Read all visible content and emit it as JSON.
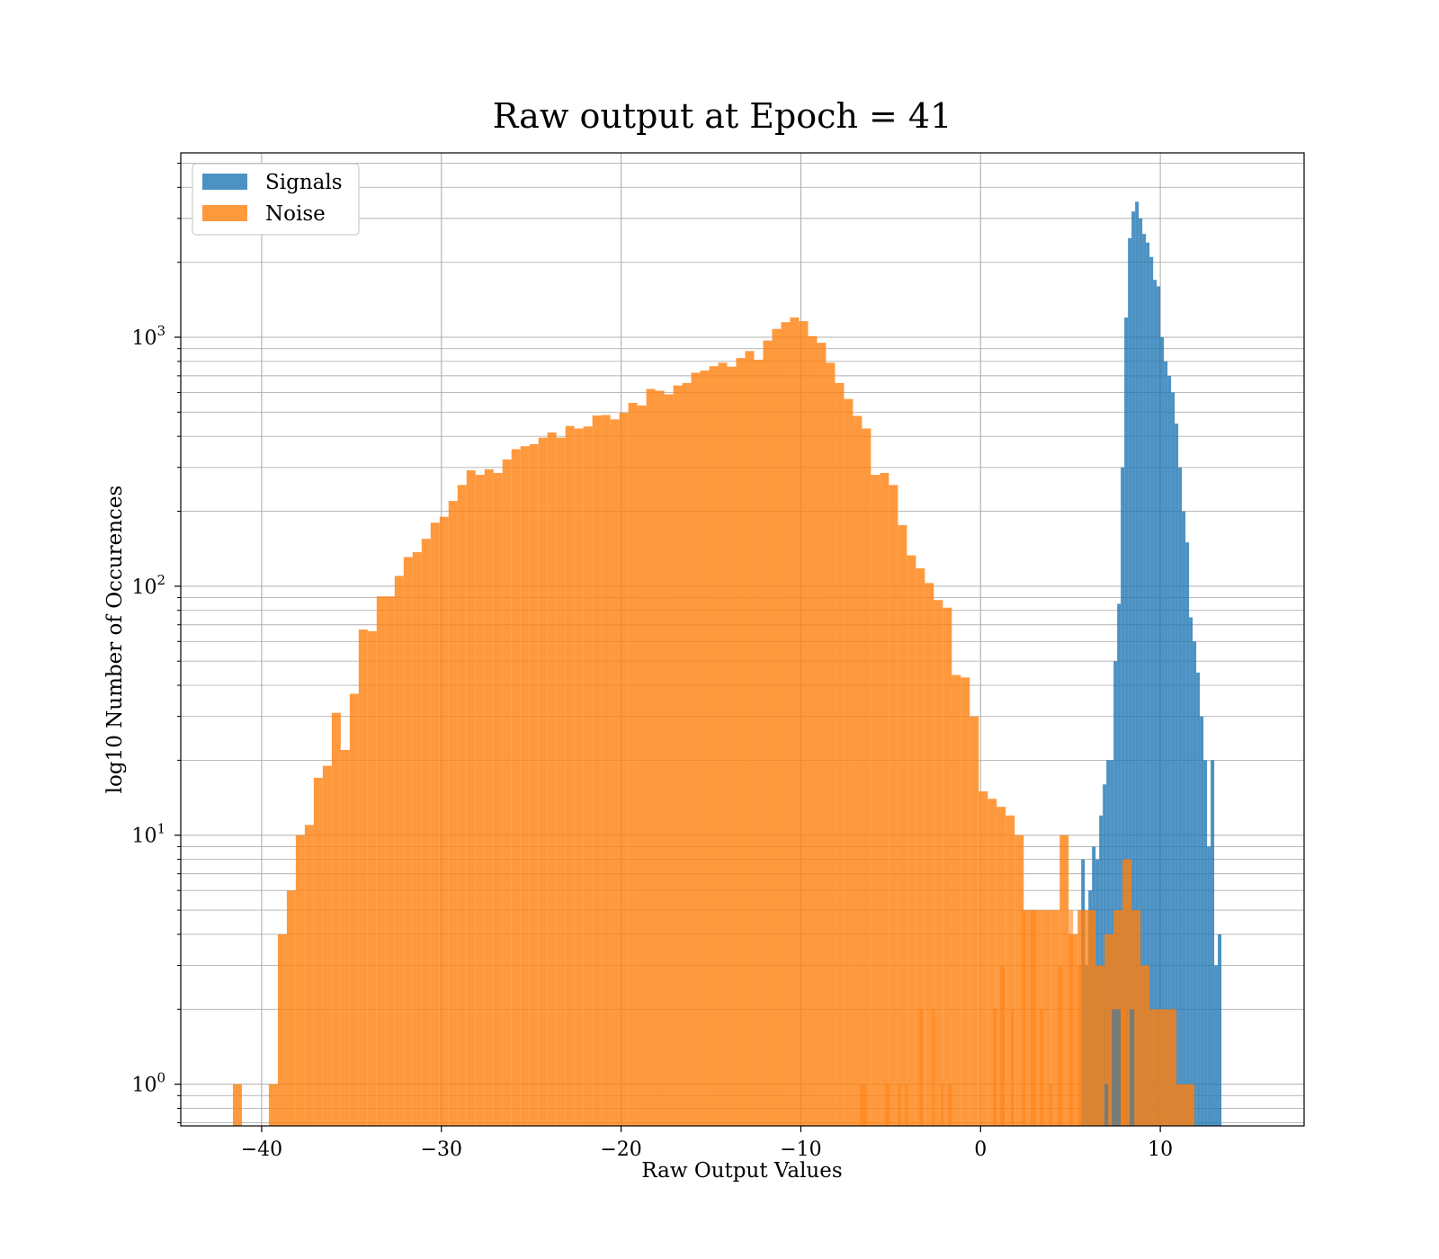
{
  "chart_data": {
    "type": "bar",
    "title": "Raw output at Epoch = 41",
    "xlabel": "Raw Output Values",
    "ylabel": "log10 Number of Occurences",
    "yscale": "log",
    "xlim": [
      -44.5,
      18
    ],
    "ylim": [
      0.68,
      5500
    ],
    "xticks": [
      -40,
      -30,
      -20,
      -10,
      0,
      10
    ],
    "xtick_labels": [
      "−40",
      "−30",
      "−20",
      "−10",
      "0",
      "10"
    ],
    "yticks": [
      1,
      10,
      100,
      1000
    ],
    "ytick_labels": [
      {
        "base": "10",
        "exp": "0"
      },
      {
        "base": "10",
        "exp": "1"
      },
      {
        "base": "10",
        "exp": "2"
      },
      {
        "base": "10",
        "exp": "3"
      }
    ],
    "grid": true,
    "legend_position": "top-left",
    "colors": {
      "signals": "#1f77b4",
      "noise": "#ff7f0e"
    },
    "alpha": 0.8,
    "series": [
      {
        "name": "Signals",
        "bin_start": 5.6,
        "bin_width": 0.2,
        "values": [
          8,
          3,
          6,
          9,
          8,
          12,
          16,
          20,
          20,
          50,
          85,
          300,
          1200,
          2500,
          3200,
          3500,
          3000,
          2600,
          2400,
          2100,
          1700,
          1600,
          1000,
          800,
          700,
          600,
          450,
          300,
          200,
          150,
          75,
          60,
          45,
          30,
          20,
          9,
          20,
          3,
          4
        ]
      },
      {
        "name": "Noise",
        "bin_start": -41.6,
        "bin_width": 0.5,
        "values": [
          1,
          0,
          0,
          0,
          1,
          4,
          6,
          10,
          11,
          17,
          19,
          31,
          22,
          37,
          67,
          66,
          91,
          91,
          110,
          131,
          137,
          155,
          180,
          190,
          220,
          255,
          292,
          280,
          295,
          285,
          323,
          355,
          365,
          372,
          395,
          415,
          395,
          440,
          430,
          438,
          485,
          487,
          468,
          497,
          545,
          532,
          620,
          610,
          590,
          640,
          655,
          720,
          735,
          765,
          790,
          762,
          825,
          880,
          812,
          970,
          1080,
          1150,
          1200,
          1160,
          1010,
          950,
          790,
          655,
          565,
          483,
          430,
          280,
          285,
          255,
          176,
          133,
          118,
          103,
          88,
          82,
          44,
          43,
          30,
          15,
          14,
          13,
          12,
          10,
          5,
          5,
          5,
          5,
          10,
          4,
          5,
          5,
          3,
          4,
          5,
          8,
          5,
          3,
          2,
          2,
          2,
          1,
          1
        ]
      }
    ],
    "noise_overlay_bars": [
      {
        "x": -6.7,
        "w": 0.35,
        "v": 1
      },
      {
        "x": -5.3,
        "w": 0.25,
        "v": 1
      },
      {
        "x": -4.6,
        "w": 0.15,
        "v": 1
      },
      {
        "x": -4.2,
        "w": 0.15,
        "v": 1
      },
      {
        "x": -3.4,
        "w": 0.2,
        "v": 2
      },
      {
        "x": -2.7,
        "w": 0.15,
        "v": 2
      },
      {
        "x": -2.2,
        "w": 0.15,
        "v": 1
      },
      {
        "x": -1.8,
        "w": 0.2,
        "v": 1
      },
      {
        "x": 0.7,
        "w": 0.2,
        "v": 2
      },
      {
        "x": 1.1,
        "w": 0.25,
        "v": 3
      },
      {
        "x": 1.7,
        "w": 0.15,
        "v": 2
      },
      {
        "x": 2.3,
        "w": 0.2,
        "v": 5
      },
      {
        "x": 2.8,
        "w": 0.25,
        "v": 5
      },
      {
        "x": 3.3,
        "w": 0.2,
        "v": 2
      },
      {
        "x": 3.8,
        "w": 0.2,
        "v": 1
      },
      {
        "x": 4.3,
        "w": 0.25,
        "v": 3
      },
      {
        "x": 4.9,
        "w": 0.25,
        "v": 5
      },
      {
        "x": 5.4,
        "w": 0.2,
        "v": 3
      },
      {
        "x": 7.8,
        "w": 0.25,
        "v": 2
      }
    ],
    "signal_overlay_bars": [
      {
        "x": 6.9,
        "w": 0.2,
        "v": 1
      },
      {
        "x": 7.3,
        "w": 0.5,
        "v": 2
      },
      {
        "x": 8.3,
        "w": 0.25,
        "v": 2
      }
    ]
  }
}
